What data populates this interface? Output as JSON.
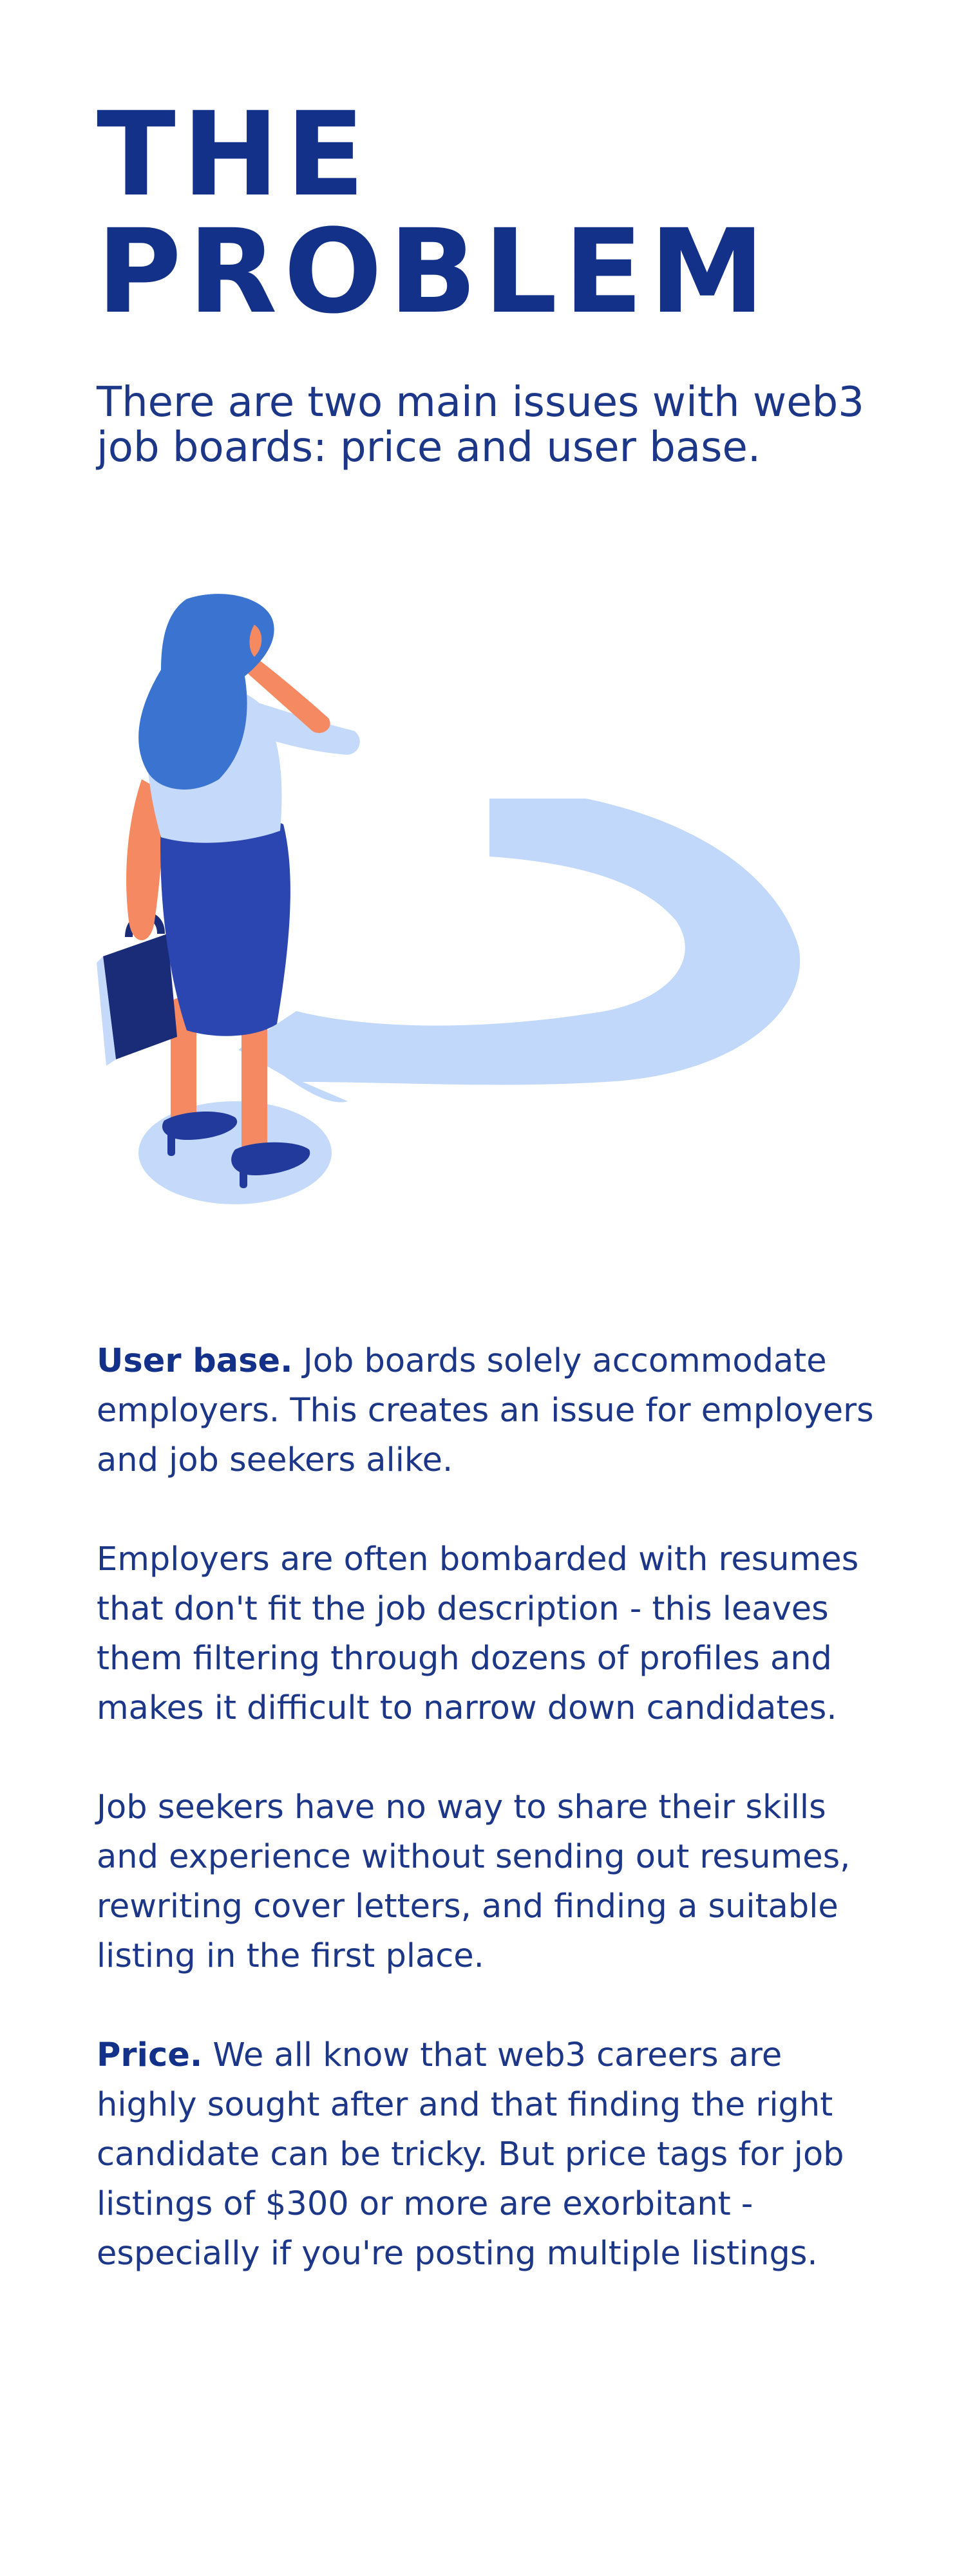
{
  "heading": {
    "line1": "THE",
    "line2": "PROBLEM"
  },
  "subtitle": "There are two main issues with web3 job boards: price and user base.",
  "illustration": {
    "icon": "woman-question-mark-illustration",
    "colors": {
      "hair": "#3a74d0",
      "skin": "#f58a62",
      "shirt": "#c5dafa",
      "skirt": "#2b46b0",
      "shoes": "#213a9c",
      "briefcase": "#1a2b78",
      "question_mark": "#c2d8fa"
    }
  },
  "paragraphs": {
    "p1_label": "User base.",
    "p1_text": " Job boards solely accommodate employers. This creates an issue for employers and job seekers alike.",
    "p2_text": "Employers are often bombarded with resumes that don't fit the job description - this leaves them filtering through dozens of profiles and makes it difficult to narrow down candidates.",
    "p3_text": "Job seekers have no way to share their skills and experience without sending out resumes, rewriting cover letters, and finding a suitable listing in the first place.",
    "p4_label": "Price.",
    "p4_text": " We all know that web3 careers are highly sought after and that finding the right candidate can be tricky. But price tags for job listings of $300 or more are exorbitant - especially if you're posting multiple listings."
  },
  "colors": {
    "heading": "#14318a",
    "text": "#1c3688",
    "background": "#ffffff"
  }
}
